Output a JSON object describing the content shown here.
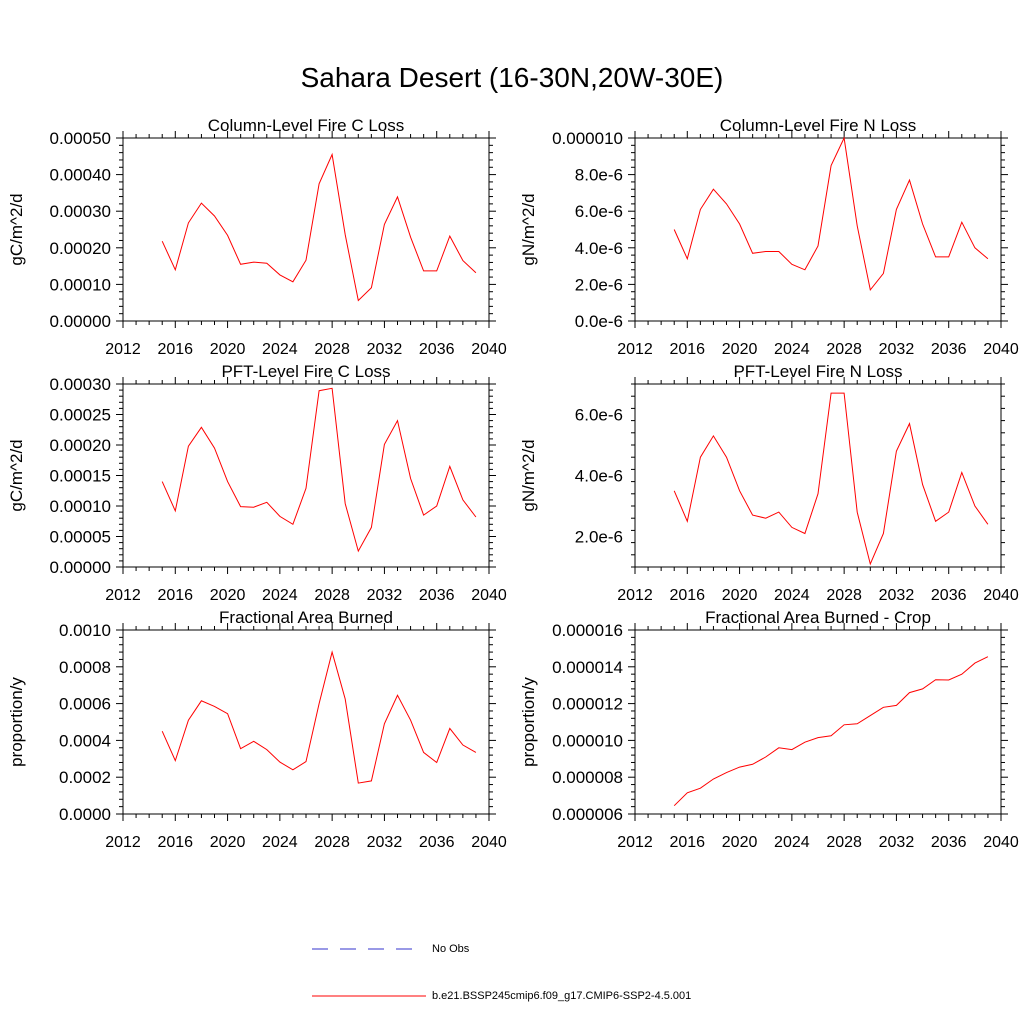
{
  "figure": {
    "title": "Sahara Desert (16-30N,20W-30E)"
  },
  "legend": {
    "entries": [
      {
        "label": "No Obs",
        "color": "#3333cc",
        "style": "dashed"
      },
      {
        "label": "b.e21.BSSP245cmip6.f09_g17.CMIP6-SSP2-4.5.001",
        "color": "#ff0000",
        "style": "solid"
      }
    ]
  },
  "chart_data": [
    {
      "type": "line",
      "title": "Column-Level Fire C Loss",
      "ylabel": "gC/m^2/d",
      "xlim": [
        2012,
        2040
      ],
      "ylim": [
        0,
        0.0005
      ],
      "xticks": [
        2012,
        2016,
        2020,
        2024,
        2028,
        2032,
        2036,
        2040
      ],
      "yticks": [
        0,
        0.0001,
        0.0002,
        0.0003,
        0.0004,
        0.0005
      ],
      "ytick_labels": [
        "0.00000",
        "0.00010",
        "0.00020",
        "0.00030",
        "0.00040",
        "0.00050"
      ],
      "x": [
        2015,
        2016,
        2017,
        2018,
        2019,
        2020,
        2021,
        2022,
        2023,
        2024,
        2025,
        2026,
        2027,
        2028,
        2029,
        2030,
        2031,
        2032,
        2033,
        2034,
        2035,
        2036,
        2037,
        2038,
        2039
      ],
      "series": [
        {
          "color": "#ff0000",
          "values": [
            0.000218,
            0.00014,
            0.000268,
            0.000322,
            0.000287,
            0.000234,
            0.000155,
            0.000161,
            0.000158,
            0.000126,
            0.000107,
            0.000166,
            0.000375,
            0.000455,
            0.000236,
            5.6e-05,
            9.1e-05,
            0.000264,
            0.000339,
            0.000229,
            0.000137,
            0.000137,
            0.000232,
            0.000165,
            0.000132
          ]
        }
      ]
    },
    {
      "type": "line",
      "title": "Column-Level Fire N Loss",
      "ylabel": "gN/m^2/d",
      "xlim": [
        2012,
        2040
      ],
      "ylim": [
        0,
        1e-05
      ],
      "xticks": [
        2012,
        2016,
        2020,
        2024,
        2028,
        2032,
        2036,
        2040
      ],
      "yticks": [
        0,
        2e-06,
        4e-06,
        6e-06,
        8e-06,
        1e-05
      ],
      "ytick_labels": [
        "0.0e-6",
        "2.0e-6",
        "4.0e-6",
        "6.0e-6",
        "8.0e-6",
        "0.000010"
      ],
      "x": [
        2015,
        2016,
        2017,
        2018,
        2019,
        2020,
        2021,
        2022,
        2023,
        2024,
        2025,
        2026,
        2027,
        2028,
        2029,
        2030,
        2031,
        2032,
        2033,
        2034,
        2035,
        2036,
        2037,
        2038,
        2039
      ],
      "series": [
        {
          "color": "#ff0000",
          "values": [
            5e-06,
            3.4e-06,
            6.1e-06,
            7.2e-06,
            6.4e-06,
            5.3e-06,
            3.7e-06,
            3.8e-06,
            3.8e-06,
            3.1e-06,
            2.8e-06,
            4.1e-06,
            8.5e-06,
            1e-05,
            5.2e-06,
            1.7e-06,
            2.6e-06,
            6.1e-06,
            7.7e-06,
            5.3e-06,
            3.5e-06,
            3.5e-06,
            5.4e-06,
            4e-06,
            3.4e-06
          ]
        }
      ]
    },
    {
      "type": "line",
      "title": "PFT-Level Fire C Loss",
      "ylabel": "gC/m^2/d",
      "xlim": [
        2012,
        2040
      ],
      "ylim": [
        0,
        0.0003
      ],
      "xticks": [
        2012,
        2016,
        2020,
        2024,
        2028,
        2032,
        2036,
        2040
      ],
      "yticks": [
        0,
        5e-05,
        0.0001,
        0.00015,
        0.0002,
        0.00025,
        0.0003
      ],
      "ytick_labels": [
        "0.00000",
        "0.00005",
        "0.00010",
        "0.00015",
        "0.00020",
        "0.00025",
        "0.00030"
      ],
      "x": [
        2015,
        2016,
        2017,
        2018,
        2019,
        2020,
        2021,
        2022,
        2023,
        2024,
        2025,
        2026,
        2027,
        2028,
        2029,
        2030,
        2031,
        2032,
        2033,
        2034,
        2035,
        2036,
        2037,
        2038,
        2039
      ],
      "series": [
        {
          "color": "#ff0000",
          "values": [
            0.00014,
            9.2e-05,
            0.000198,
            0.000229,
            0.000195,
            0.00014,
            9.9e-05,
            9.8e-05,
            0.000106,
            8.3e-05,
            7e-05,
            0.000129,
            0.000289,
            0.000293,
            0.000104,
            2.6e-05,
            6.5e-05,
            0.000201,
            0.00024,
            0.000145,
            8.5e-05,
            0.0001,
            0.000165,
            0.00011,
            8.2e-05
          ]
        }
      ]
    },
    {
      "type": "line",
      "title": "PFT-Level Fire N Loss",
      "ylabel": "gN/m^2/d",
      "xlim": [
        2012,
        2040
      ],
      "ylim": [
        1e-06,
        7e-06
      ],
      "xticks": [
        2012,
        2016,
        2020,
        2024,
        2028,
        2032,
        2036,
        2040
      ],
      "yticks": [
        2e-06,
        4e-06,
        6e-06
      ],
      "ytick_labels": [
        "2.0e-6",
        "4.0e-6",
        "6.0e-6"
      ],
      "x": [
        2015,
        2016,
        2017,
        2018,
        2019,
        2020,
        2021,
        2022,
        2023,
        2024,
        2025,
        2026,
        2027,
        2028,
        2029,
        2030,
        2031,
        2032,
        2033,
        2034,
        2035,
        2036,
        2037,
        2038,
        2039
      ],
      "series": [
        {
          "color": "#ff0000",
          "values": [
            3.5e-06,
            2.5e-06,
            4.6e-06,
            5.3e-06,
            4.6e-06,
            3.5e-06,
            2.7e-06,
            2.6e-06,
            2.8e-06,
            2.3e-06,
            2.1e-06,
            3.4e-06,
            6.7e-06,
            6.7e-06,
            2.8e-06,
            1.1e-06,
            2.1e-06,
            4.8e-06,
            5.7e-06,
            3.7e-06,
            2.5e-06,
            2.8e-06,
            4.1e-06,
            3e-06,
            2.4e-06
          ]
        }
      ]
    },
    {
      "type": "line",
      "title": "Fractional Area Burned",
      "ylabel": "proportion/y",
      "xlim": [
        2012,
        2040
      ],
      "ylim": [
        0,
        0.001
      ],
      "xticks": [
        2012,
        2016,
        2020,
        2024,
        2028,
        2032,
        2036,
        2040
      ],
      "yticks": [
        0,
        0.0002,
        0.0004,
        0.0006,
        0.0008,
        0.001
      ],
      "ytick_labels": [
        "0.0000",
        "0.0002",
        "0.0004",
        "0.0006",
        "0.0008",
        "0.0010"
      ],
      "x": [
        2015,
        2016,
        2017,
        2018,
        2019,
        2020,
        2021,
        2022,
        2023,
        2024,
        2025,
        2026,
        2027,
        2028,
        2029,
        2030,
        2031,
        2032,
        2033,
        2034,
        2035,
        2036,
        2037,
        2038,
        2039
      ],
      "series": [
        {
          "color": "#ff0000",
          "values": [
            0.00045,
            0.00029,
            0.00051,
            0.000615,
            0.000585,
            0.000545,
            0.000355,
            0.000395,
            0.00035,
            0.000282,
            0.00024,
            0.000285,
            0.0006,
            0.00088,
            0.000625,
            0.000168,
            0.00018,
            0.00049,
            0.000645,
            0.00051,
            0.000335,
            0.00028,
            0.000465,
            0.000375,
            0.000335
          ]
        }
      ]
    },
    {
      "type": "line",
      "title": "Fractional Area Burned - Crop",
      "ylabel": "proportion/y",
      "xlim": [
        2012,
        2040
      ],
      "ylim": [
        6e-06,
        1.6e-05
      ],
      "xticks": [
        2012,
        2016,
        2020,
        2024,
        2028,
        2032,
        2036,
        2040
      ],
      "yticks": [
        6e-06,
        8e-06,
        1e-05,
        1.2e-05,
        1.4e-05,
        1.6e-05
      ],
      "ytick_labels": [
        "0.000006",
        "0.000008",
        "0.000010",
        "0.000012",
        "0.000014",
        "0.000016"
      ],
      "x": [
        2015,
        2016,
        2017,
        2018,
        2019,
        2020,
        2021,
        2022,
        2023,
        2024,
        2025,
        2026,
        2027,
        2028,
        2029,
        2030,
        2031,
        2032,
        2033,
        2034,
        2035,
        2036,
        2037,
        2038,
        2039
      ],
      "series": [
        {
          "color": "#ff0000",
          "values": [
            6.45e-06,
            7.15e-06,
            7.4e-06,
            7.9e-06,
            8.25e-06,
            8.55e-06,
            8.7e-06,
            9.1e-06,
            9.6e-06,
            9.5e-06,
            9.9e-06,
            1.015e-05,
            1.025e-05,
            1.085e-05,
            1.09e-05,
            1.135e-05,
            1.18e-05,
            1.19e-05,
            1.26e-05,
            1.28e-05,
            1.33e-05,
            1.328e-05,
            1.36e-05,
            1.42e-05,
            1.455e-05
          ]
        }
      ]
    }
  ]
}
